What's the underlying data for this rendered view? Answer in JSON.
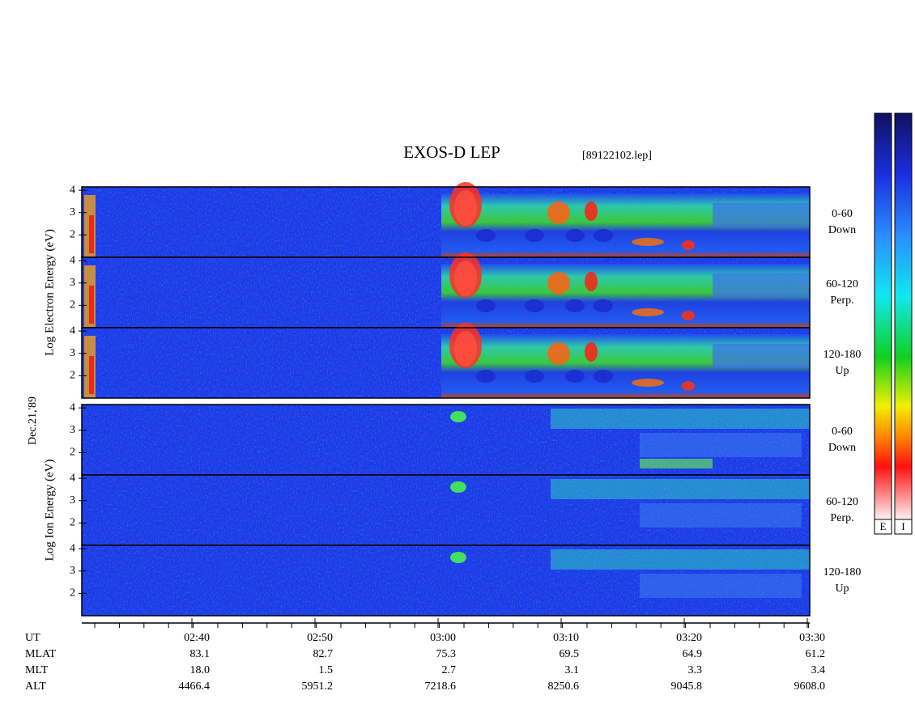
{
  "title": "EXOS-D LEP",
  "file_label": "[89122102.lep]",
  "date_label": "Dec.21,'89",
  "groups": [
    {
      "ylabel": "Log Electron Energy (eV)",
      "panels": [
        {
          "yticks": [
            2,
            3,
            4
          ],
          "channel": [
            "0-60",
            "Down"
          ]
        },
        {
          "yticks": [
            2,
            3,
            4
          ],
          "channel": [
            "60-120",
            "Perp."
          ]
        },
        {
          "yticks": [
            2,
            3,
            4
          ],
          "channel": [
            "120-180",
            "Up"
          ]
        }
      ]
    },
    {
      "ylabel": "Log Ion Energy (eV)",
      "panels": [
        {
          "yticks": [
            2,
            3,
            4
          ],
          "channel": [
            "0-60",
            "Down"
          ]
        },
        {
          "yticks": [
            2,
            3,
            4
          ],
          "channel": [
            "60-120",
            "Perp."
          ]
        },
        {
          "yticks": [
            2,
            3,
            4
          ],
          "channel": [
            "120-180",
            "Up"
          ]
        }
      ]
    }
  ],
  "colorbars": [
    "E",
    "I"
  ],
  "table": {
    "rows": [
      {
        "label": "UT",
        "values": [
          "02:40",
          "02:50",
          "03:00",
          "03:10",
          "03:20",
          "03:30"
        ]
      },
      {
        "label": "MLAT",
        "values": [
          "83.1",
          "82.7",
          "75.3",
          "69.5",
          "64.9",
          "61.2"
        ]
      },
      {
        "label": "MLT",
        "values": [
          "18.0",
          "1.5",
          "2.7",
          "3.1",
          "3.3",
          "3.4"
        ]
      },
      {
        "label": "ALT",
        "values": [
          "4466.4",
          "5951.2",
          "7218.6",
          "8250.6",
          "9045.8",
          "9608.0"
        ]
      }
    ]
  }
}
